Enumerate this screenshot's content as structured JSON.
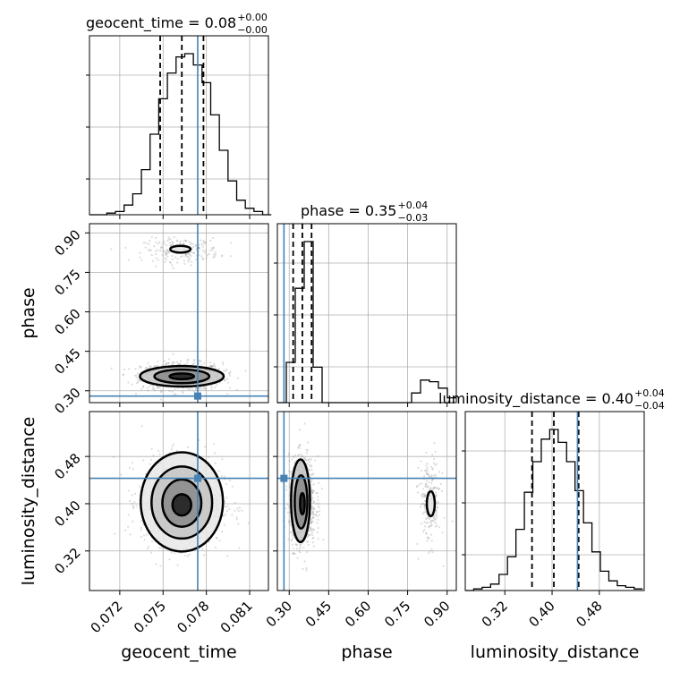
{
  "chart_data": {
    "type": "corner",
    "parameters": [
      {
        "key": "geocent_time",
        "axis_label": "geocent_time",
        "title_base": "geocent_time = 0.08",
        "title_sup": "+0.00",
        "title_sub": "−0.00",
        "range": [
          0.0699,
          0.0823
        ],
        "ticks": [
          0.072,
          0.075,
          0.078,
          0.081
        ],
        "tick_labels": [
          "0.072",
          "0.075",
          "0.078",
          "0.081"
        ],
        "quantiles": [
          0.0748,
          0.0763,
          0.0778
        ],
        "truth": 0.0774,
        "hist_bin_edges_start": 0.0699,
        "hist_bin_width": 0.0006,
        "hist_counts": [
          0.0,
          0.0,
          1.0,
          2.0,
          6.0,
          13.0,
          28.0,
          50.0,
          72.0,
          88.0,
          98.0,
          100.0,
          93.0,
          82.0,
          62.0,
          40.0,
          21.0,
          9.0,
          4.0,
          2.0,
          0.0
        ]
      },
      {
        "key": "phase",
        "axis_label": "phase",
        "title_base": "phase = 0.35",
        "title_sup": "+0.04",
        "title_sub": "−0.03",
        "range": [
          0.255,
          0.935
        ],
        "ticks": [
          0.3,
          0.45,
          0.6,
          0.75,
          0.9
        ],
        "tick_labels": [
          "0.30",
          "0.45",
          "0.60",
          "0.75",
          "0.90"
        ],
        "quantiles": [
          0.315,
          0.35,
          0.385
        ],
        "truth": 0.28,
        "hist_bin_edges_start": 0.255,
        "hist_bin_width": 0.034,
        "hist_counts": [
          0.0,
          25.0,
          71.0,
          100.0,
          22.0,
          0.0,
          0.0,
          0.0,
          0.0,
          0.0,
          0.0,
          0.0,
          0.0,
          0.0,
          0.0,
          6.0,
          14.0,
          13.0,
          9.0,
          3.0
        ]
      },
      {
        "key": "luminosity_distance",
        "axis_label": "luminosity_distance",
        "title_base": "luminosity_distance = 0.40",
        "title_sup": "+0.04",
        "title_sub": "−0.04",
        "range": [
          0.253,
          0.556
        ],
        "ticks": [
          0.32,
          0.4,
          0.48
        ],
        "tick_labels": [
          "0.32",
          "0.40",
          "0.48"
        ],
        "quantiles": [
          0.366,
          0.403,
          0.445
        ],
        "truth": 0.443,
        "hist_bin_edges_start": 0.253,
        "hist_bin_width": 0.0143,
        "hist_counts": [
          0.0,
          1.0,
          2.0,
          4.0,
          10.0,
          21.0,
          38.0,
          61.0,
          80.0,
          94.0,
          100.0,
          92.0,
          80.0,
          62.0,
          42.0,
          24.0,
          12.0,
          6.0,
          3.0,
          2.0,
          1.0
        ]
      }
    ],
    "pairs": [
      {
        "x": "geocent_time",
        "y": "phase",
        "modes": [
          {
            "cx": 0.0763,
            "cy": 0.355,
            "sx": 0.0014,
            "sy": 0.026,
            "n": 900
          },
          {
            "cx": 0.0763,
            "cy": 0.835,
            "sx": 0.0013,
            "sy": 0.022,
            "n": 220
          }
        ],
        "contours": [
          {
            "cx": 0.0763,
            "cy": 0.355,
            "rx": 0.00085,
            "ry": 0.011,
            "width": 2.5
          },
          {
            "cx": 0.0763,
            "cy": 0.355,
            "rx": 0.0019,
            "ry": 0.026,
            "width": 2.5
          },
          {
            "cx": 0.0763,
            "cy": 0.355,
            "rx": 0.0029,
            "ry": 0.039,
            "width": 2.5
          },
          {
            "cx": 0.0762,
            "cy": 0.838,
            "rx": 0.0007,
            "ry": 0.013,
            "width": 2.5
          }
        ],
        "truth": [
          0.0774,
          0.28
        ]
      },
      {
        "x": "geocent_time",
        "y": "luminosity_distance",
        "modes": [
          {
            "cx": 0.0763,
            "cy": 0.403,
            "sx": 0.0014,
            "sy": 0.036,
            "n": 1100
          }
        ],
        "contours": [
          {
            "cx": 0.0763,
            "cy": 0.398,
            "rx": 0.00065,
            "ry": 0.018,
            "width": 2.5
          },
          {
            "cx": 0.0763,
            "cy": 0.401,
            "rx": 0.00135,
            "ry": 0.04,
            "width": 2.5
          },
          {
            "cx": 0.0763,
            "cy": 0.402,
            "rx": 0.0021,
            "ry": 0.061,
            "width": 2.5
          },
          {
            "cx": 0.0763,
            "cy": 0.403,
            "rx": 0.00285,
            "ry": 0.084,
            "width": 2.5
          }
        ],
        "truth": [
          0.0774,
          0.443
        ]
      },
      {
        "x": "phase",
        "y": "luminosity_distance",
        "modes": [
          {
            "cx": 0.35,
            "cy": 0.403,
            "sx": 0.025,
            "sy": 0.037,
            "n": 900
          },
          {
            "cx": 0.835,
            "cy": 0.403,
            "sx": 0.02,
            "sy": 0.036,
            "n": 220
          }
        ],
        "contours": [
          {
            "cx": 0.35,
            "cy": 0.4,
            "rx": 0.009,
            "ry": 0.018,
            "width": 2.5
          },
          {
            "cx": 0.345,
            "cy": 0.403,
            "rx": 0.024,
            "ry": 0.045,
            "width": 2.5
          },
          {
            "cx": 0.343,
            "cy": 0.405,
            "rx": 0.036,
            "ry": 0.07,
            "width": 2.5
          },
          {
            "cx": 0.838,
            "cy": 0.4,
            "rx": 0.015,
            "ry": 0.021,
            "width": 2.5
          }
        ],
        "truth": [
          0.28,
          0.443
        ]
      }
    ],
    "colors": {
      "hist_line": "#000000",
      "truth_line": "#4682b4",
      "samples": "#9e9e9e",
      "grid": "#b0b0b0",
      "density_cmap_dark": "#000000",
      "contour": "#000000"
    },
    "grid": true,
    "legend": "none"
  }
}
